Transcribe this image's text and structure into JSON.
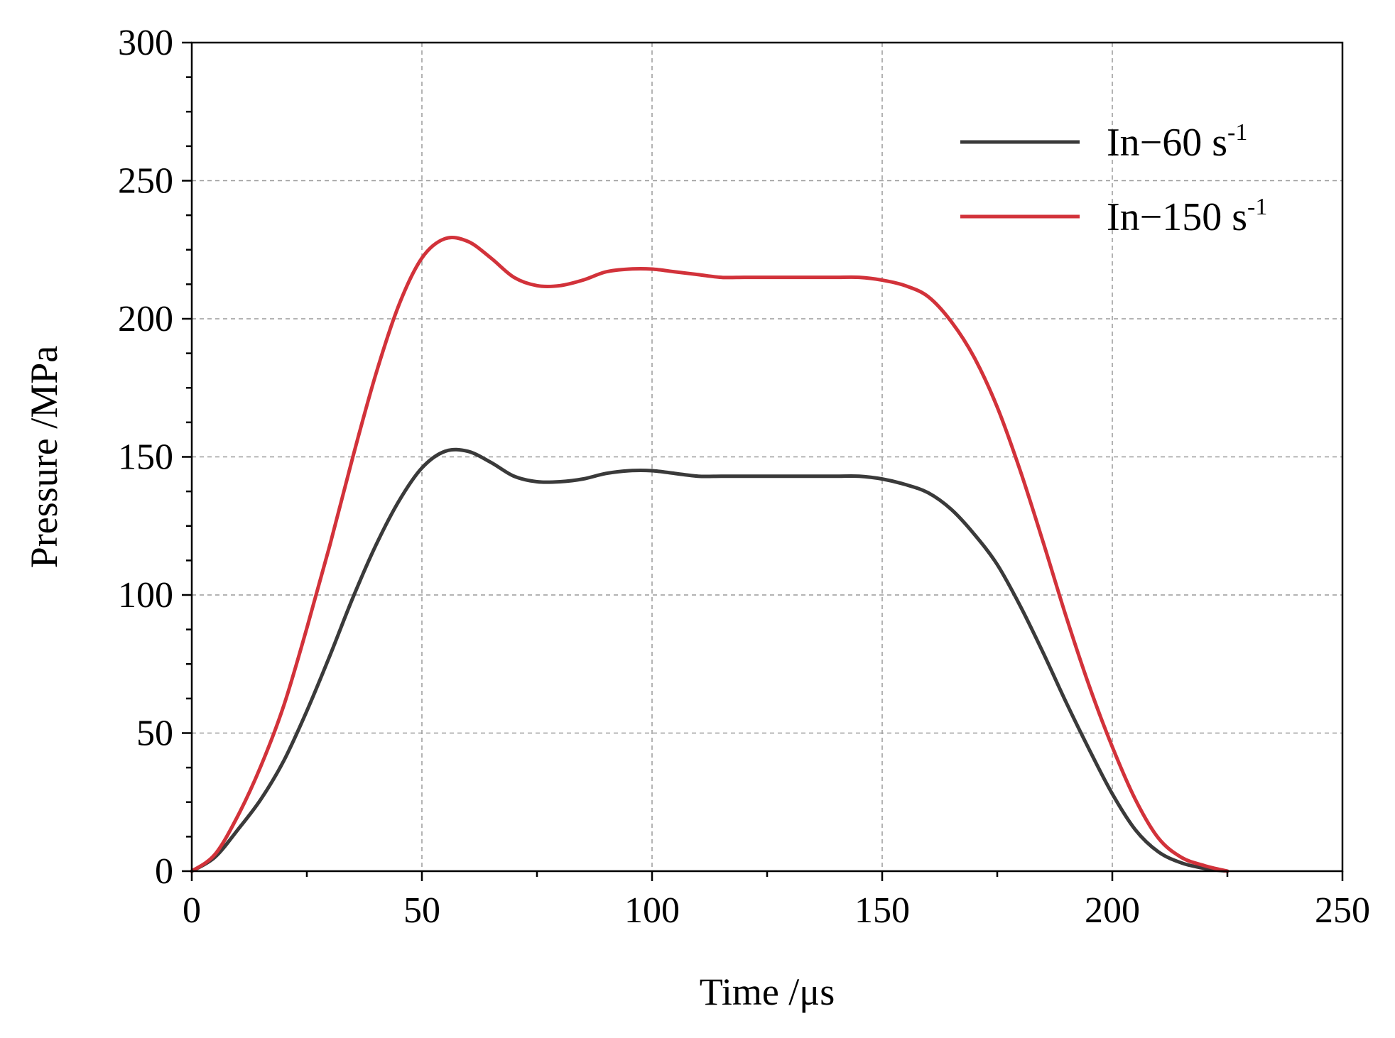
{
  "chart_data": {
    "type": "line",
    "title": "",
    "xlabel": "Time /μs",
    "ylabel": "Pressure /MPa",
    "xlim": [
      0,
      250
    ],
    "ylim": [
      0,
      300
    ],
    "xticks": [
      0,
      50,
      100,
      150,
      200,
      250
    ],
    "yticks": [
      0,
      50,
      100,
      150,
      200,
      250,
      300
    ],
    "grid": true,
    "legend_position": "top-right",
    "series": [
      {
        "name": "In−60 s-1",
        "legend_main": "In−60 s",
        "legend_sup": "-1",
        "color": "#3a3a3a",
        "x": [
          0,
          5,
          10,
          15,
          20,
          25,
          30,
          35,
          40,
          45,
          50,
          55,
          60,
          65,
          70,
          75,
          80,
          85,
          90,
          95,
          100,
          105,
          110,
          115,
          120,
          125,
          130,
          135,
          140,
          145,
          150,
          155,
          160,
          165,
          170,
          175,
          180,
          185,
          190,
          195,
          200,
          205,
          210,
          215,
          220,
          225
        ],
        "y": [
          0,
          5,
          15,
          26,
          40,
          58,
          78,
          99,
          118,
          134,
          146,
          152,
          152,
          148,
          143,
          141,
          141,
          142,
          144,
          145,
          145,
          144,
          143,
          143,
          143,
          143,
          143,
          143,
          143,
          143,
          142,
          140,
          137,
          131,
          122,
          111,
          96,
          79,
          61,
          44,
          28,
          15,
          7,
          3,
          1,
          0
        ]
      },
      {
        "name": "In−150 s-1",
        "legend_main": "In−150 s",
        "legend_sup": "-1",
        "color": "#d2323a",
        "x": [
          0,
          5,
          10,
          15,
          20,
          25,
          30,
          35,
          40,
          45,
          50,
          55,
          60,
          65,
          70,
          75,
          80,
          85,
          90,
          95,
          100,
          105,
          110,
          115,
          120,
          125,
          130,
          135,
          140,
          145,
          150,
          155,
          160,
          165,
          170,
          175,
          180,
          185,
          190,
          195,
          200,
          205,
          210,
          215,
          220,
          225
        ],
        "y": [
          0,
          6,
          20,
          38,
          60,
          88,
          118,
          150,
          180,
          205,
          222,
          229,
          228,
          222,
          215,
          212,
          212,
          214,
          217,
          218,
          218,
          217,
          216,
          215,
          215,
          215,
          215,
          215,
          215,
          215,
          214,
          212,
          208,
          199,
          186,
          168,
          145,
          119,
          92,
          67,
          45,
          26,
          12,
          5,
          2,
          0
        ]
      }
    ]
  }
}
